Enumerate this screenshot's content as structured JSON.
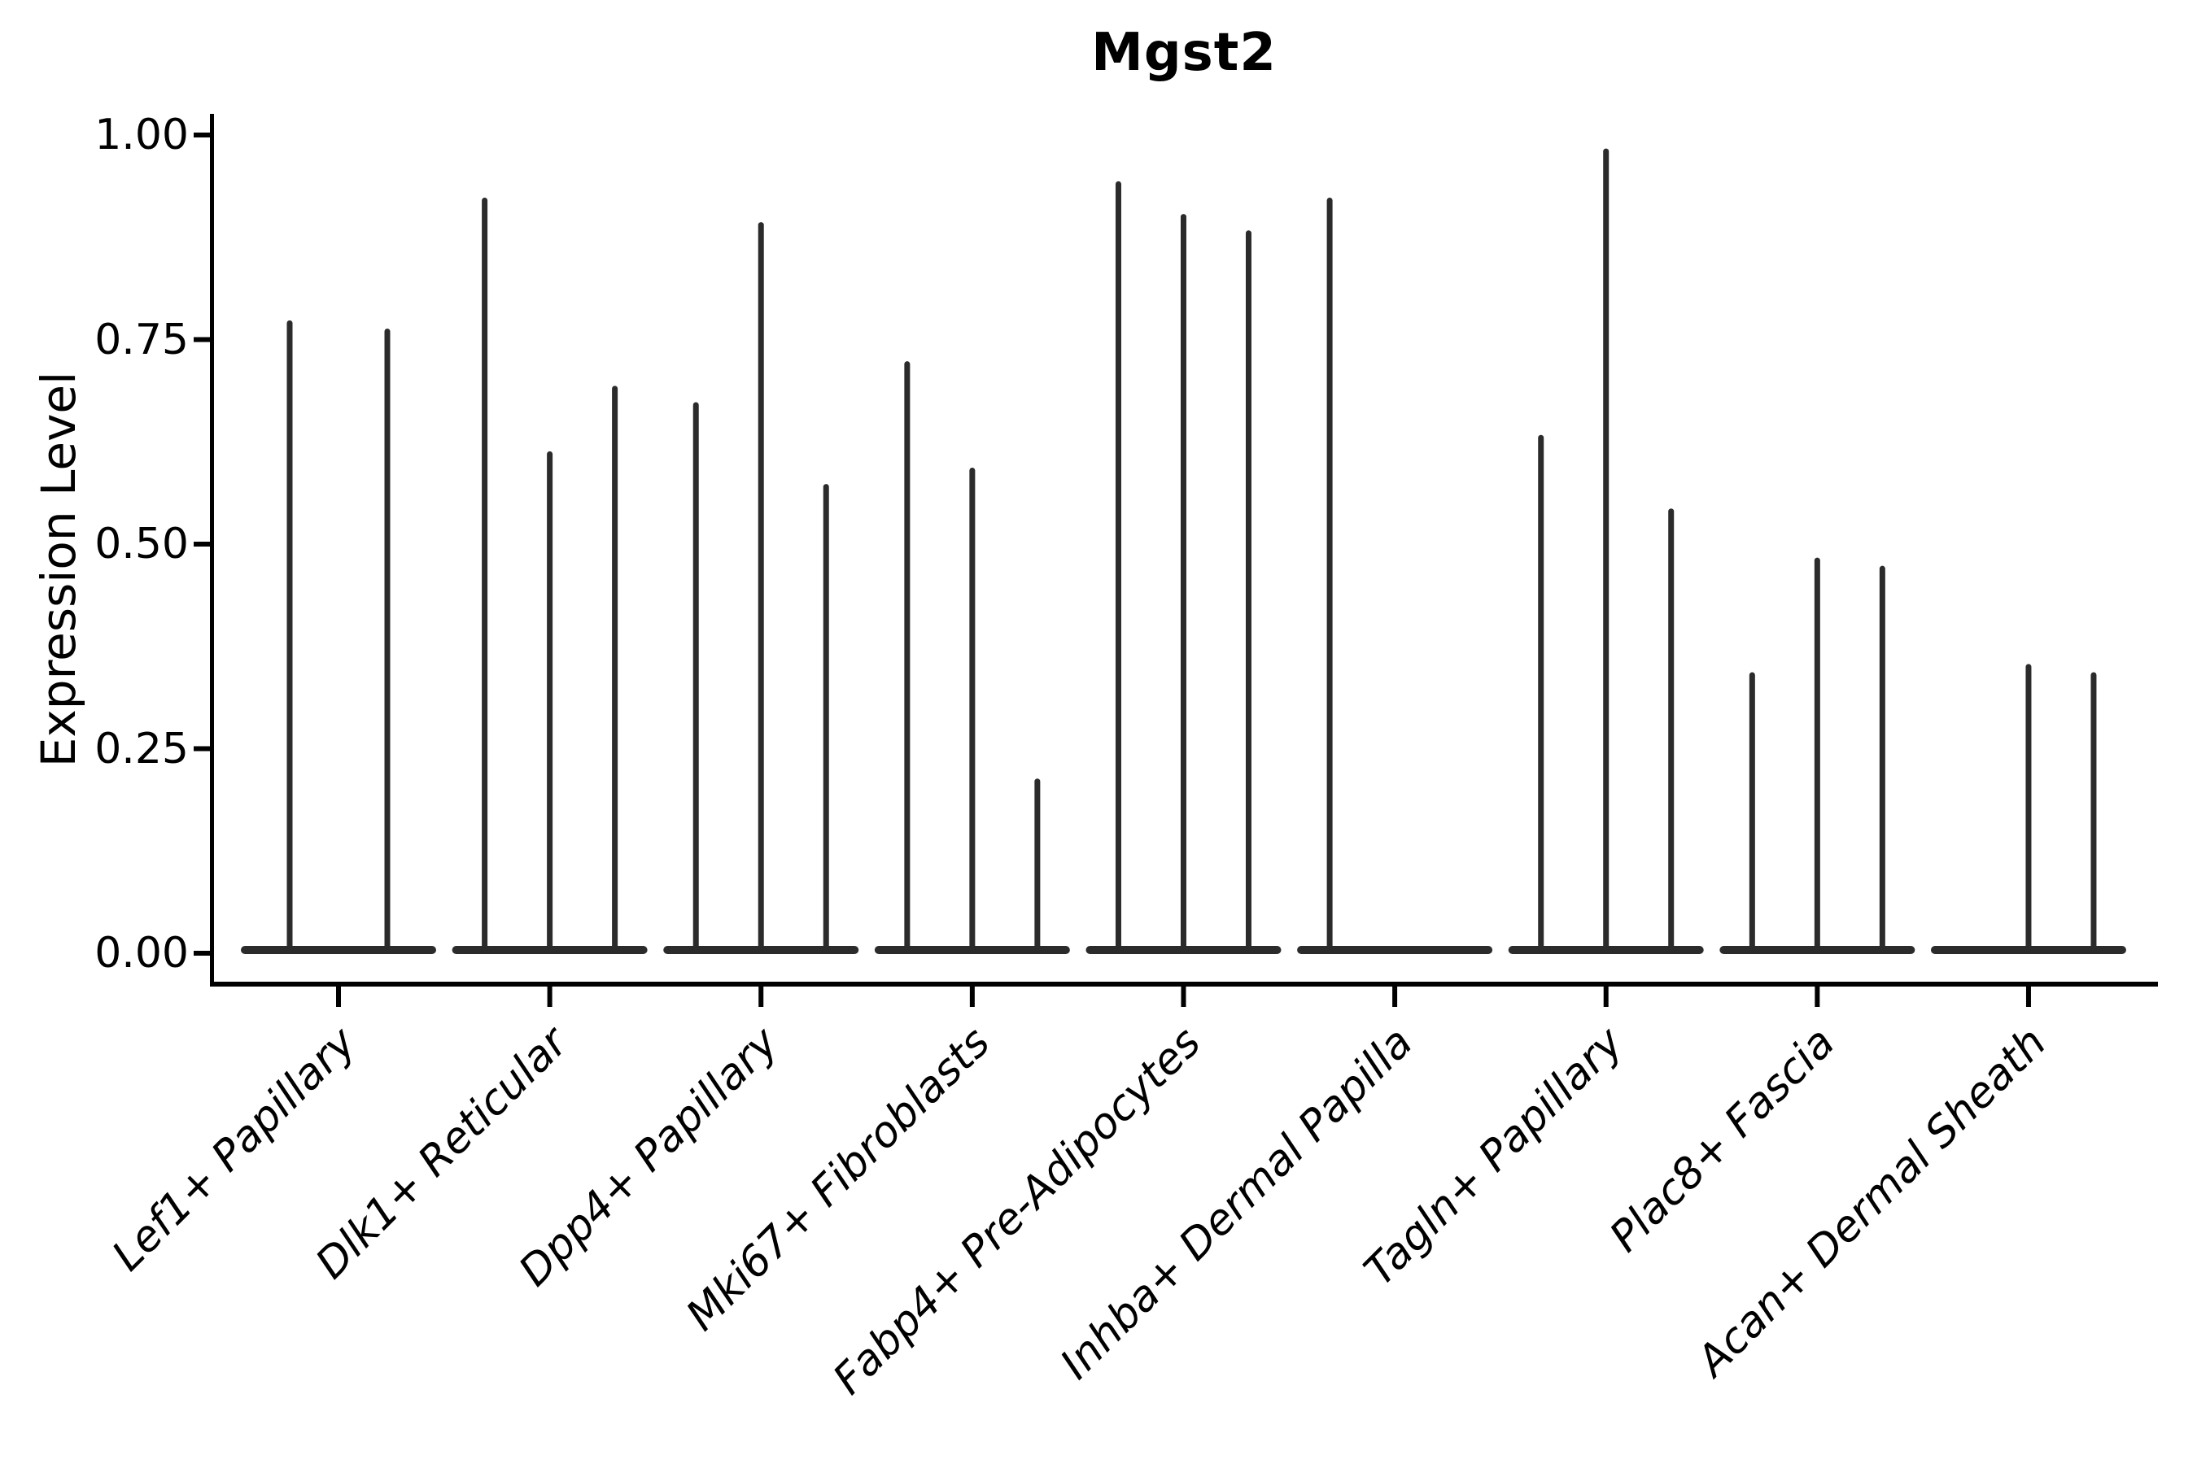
{
  "title": "Mgst2",
  "y_axis_label": "Expression Level",
  "chart_data": {
    "type": "violin",
    "title": "Mgst2",
    "xlabel": "",
    "ylabel": "Expression Level",
    "ylim": [
      0,
      1.05
    ],
    "yticks": [
      0.0,
      0.25,
      0.5,
      0.75,
      1.0
    ],
    "ytick_labels": [
      "0.00",
      "0.25",
      "0.50",
      "0.75",
      "1.00"
    ],
    "grid": false,
    "legend": "none",
    "description": "Needle-thin violins sitting on flat zero-density bases; value listed is the top (max expression) of each spike, 0 means flat base with no spike",
    "categories": [
      "Lef1+ Papillary",
      "Dlk1+ Reticular",
      "Dpp4+ Papillary",
      "Mki67+ Fibroblasts",
      "Fabp4+ Pre-Adipocytes",
      "Inhba+ Dermal Papilla",
      "Tagln+ Papillary",
      "Plac8+ Fascia",
      "Acan+ Dermal Sheath"
    ],
    "groups": [
      {
        "label": "Lef1+ Papillary",
        "spike_maxima": [
          0.77,
          0.76
        ]
      },
      {
        "label": "Dlk1+ Reticular",
        "spike_maxima": [
          0.92,
          0.61,
          0.69
        ]
      },
      {
        "label": "Dpp4+ Papillary",
        "spike_maxima": [
          0.67,
          0.89,
          0.57
        ]
      },
      {
        "label": "Mki67+ Fibroblasts",
        "spike_maxima": [
          0.72,
          0.59,
          0.21
        ]
      },
      {
        "label": "Fabp4+ Pre-Adipocytes",
        "spike_maxima": [
          0.94,
          0.9,
          0.88
        ]
      },
      {
        "label": "Inhba+ Dermal Papilla",
        "spike_maxima": [
          0.92,
          0,
          0
        ]
      },
      {
        "label": "Tagln+ Papillary",
        "spike_maxima": [
          0.63,
          0.98,
          0.54
        ]
      },
      {
        "label": "Plac8+ Fascia",
        "spike_maxima": [
          0.34,
          0.48,
          0.47
        ]
      },
      {
        "label": "Acan+ Dermal Sheath",
        "spike_maxima": [
          0,
          0.35,
          0.34
        ]
      }
    ]
  },
  "colors": {
    "background": "#ffffff",
    "violin": "#2b2b2b",
    "axis": "#000000",
    "text": "#000000"
  }
}
